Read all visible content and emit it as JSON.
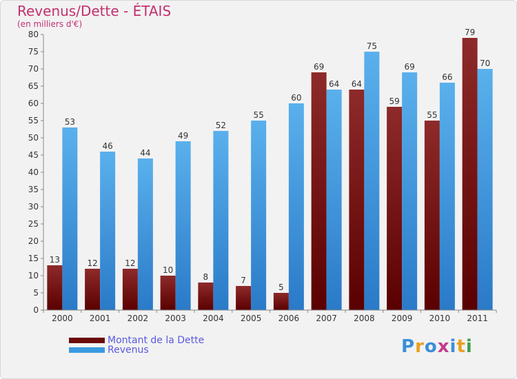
{
  "header": {
    "title": "Revenus/Dette - ÉTAIS",
    "subtitle": "(en milliers d'€)"
  },
  "chart_data": {
    "type": "bar",
    "categories": [
      "2000",
      "2001",
      "2002",
      "2003",
      "2004",
      "2005",
      "2006",
      "2007",
      "2008",
      "2009",
      "2010",
      "2011"
    ],
    "series": [
      {
        "name": "Montant de la Dette",
        "color": "#8b1a1a",
        "values": [
          13,
          12,
          12,
          10,
          8,
          7,
          5,
          69,
          64,
          59,
          55,
          79
        ]
      },
      {
        "name": "Revenus",
        "color": "#3a9ae0",
        "values": [
          53,
          46,
          44,
          49,
          52,
          55,
          60,
          64,
          75,
          69,
          66,
          70
        ]
      }
    ],
    "ylim": [
      0,
      80
    ],
    "yticks": [
      0,
      5,
      10,
      15,
      20,
      25,
      30,
      35,
      40,
      45,
      50,
      55,
      60,
      65,
      70,
      75,
      80
    ],
    "grid": false,
    "legend_position": "bottom-left",
    "data_labels": true
  },
  "logo": {
    "text": "Proxiti",
    "letter_colors": [
      "#3a8fd8",
      "#e8a020",
      "#3a8fd8",
      "#c43a8a",
      "#3a8fd8",
      "#e8a020",
      "#3aa050"
    ]
  }
}
